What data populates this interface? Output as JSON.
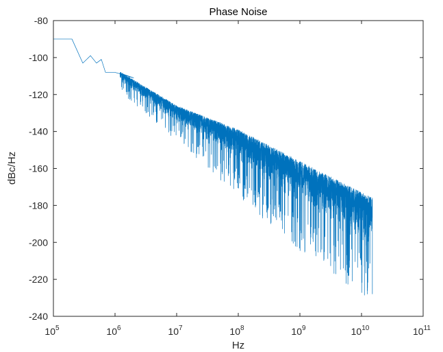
{
  "chart_data": {
    "type": "line",
    "title": "Phase Noise",
    "xlabel": "Hz",
    "ylabel": "dBc/Hz",
    "xscale": "log",
    "xlim": [
      100000,
      100000000000
    ],
    "ylim": [
      -240,
      -80
    ],
    "x_ticks": [
      {
        "base": "10",
        "exp": "5"
      },
      {
        "base": "10",
        "exp": "6"
      },
      {
        "base": "10",
        "exp": "7"
      },
      {
        "base": "10",
        "exp": "8"
      },
      {
        "base": "10",
        "exp": "9"
      },
      {
        "base": "10",
        "exp": "10"
      },
      {
        "base": "10",
        "exp": "11"
      }
    ],
    "y_ticks": [
      "-80",
      "-100",
      "-120",
      "-140",
      "-160",
      "-180",
      "-200",
      "-220",
      "-240"
    ],
    "grid": false,
    "box": true,
    "line_color": "#0072BD",
    "series": [
      {
        "x_range": [
          100000,
          15000000000
        ],
        "trend_approx": [
          {
            "x": 100000,
            "y": -90
          },
          {
            "x": 200000,
            "y": -90
          },
          {
            "x": 300000,
            "y": -103
          },
          {
            "x": 400000,
            "y": -99
          },
          {
            "x": 500000,
            "y": -103
          },
          {
            "x": 600000,
            "y": -101
          },
          {
            "x": 700000,
            "y": -108
          },
          {
            "x": 1000000,
            "y": -108
          },
          {
            "x": 2000000,
            "y": -111
          },
          {
            "x": 4000000,
            "y": -120
          },
          {
            "x": 10000000,
            "y": -127
          },
          {
            "x": 100000000,
            "y": -140
          },
          {
            "x": 1000000000,
            "y": -155
          },
          {
            "x": 15000000000,
            "y": -185
          }
        ],
        "spread_approx": [
          {
            "x": 1000000,
            "upper": -106,
            "lower": -116
          },
          {
            "x": 10000000,
            "upper": -126,
            "lower": -145
          },
          {
            "x": 100000000,
            "upper": -139,
            "lower": -175
          },
          {
            "x": 1000000000,
            "upper": -156,
            "lower": -205
          },
          {
            "x": 15000000000,
            "upper": -176,
            "lower": -232
          }
        ]
      }
    ]
  }
}
